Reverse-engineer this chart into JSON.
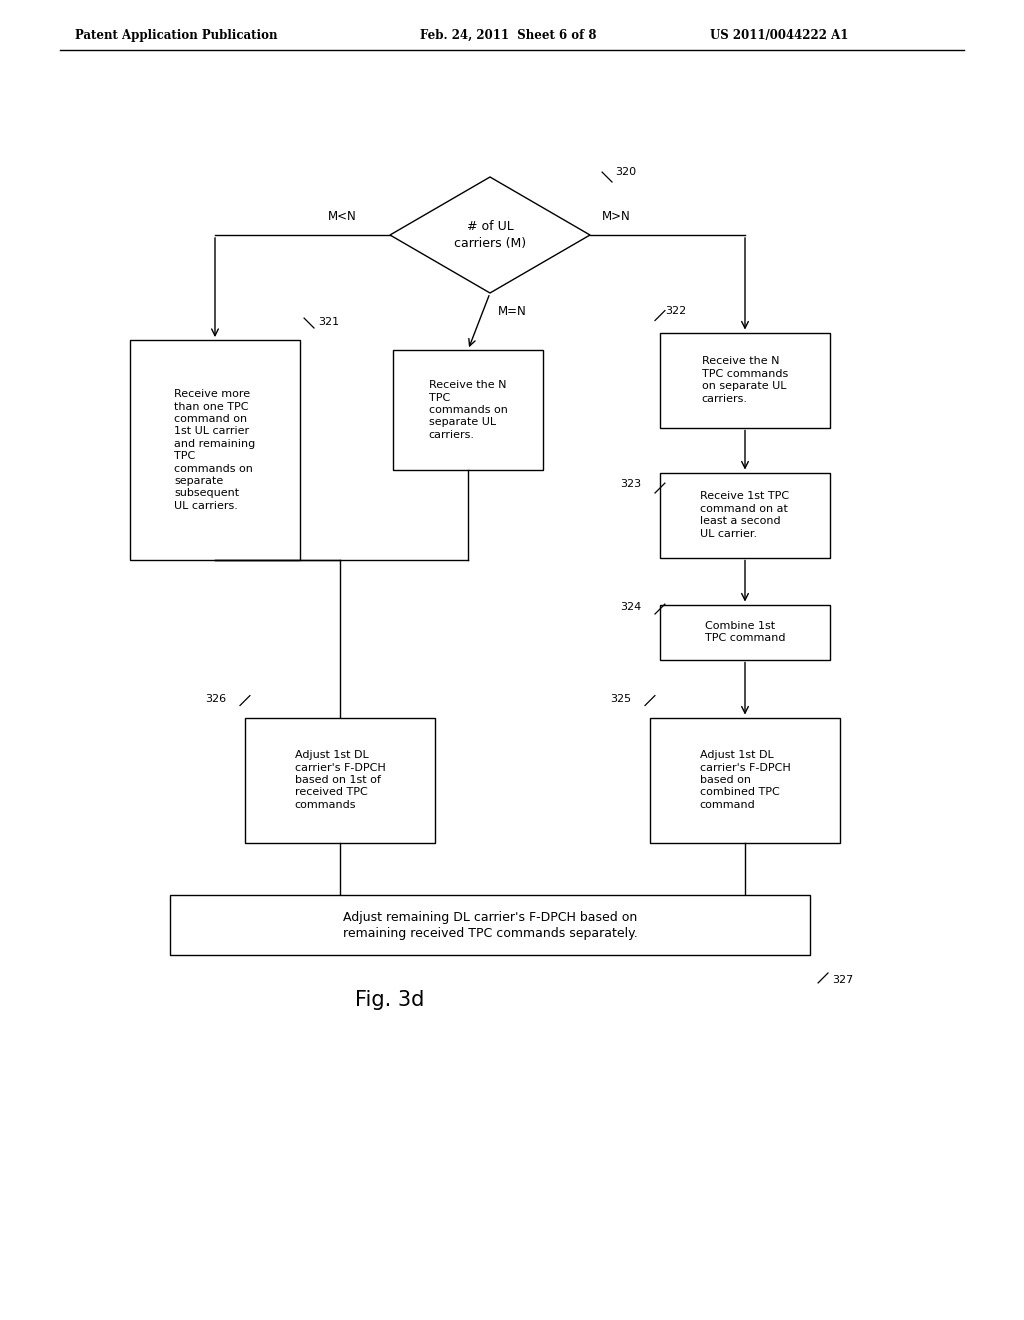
{
  "bg_color": "#ffffff",
  "header_left": "Patent Application Publication",
  "header_mid": "Feb. 24, 2011  Sheet 6 of 8",
  "header_right": "US 2011/0044222 A1",
  "figure_label": "Fig. 3d"
}
